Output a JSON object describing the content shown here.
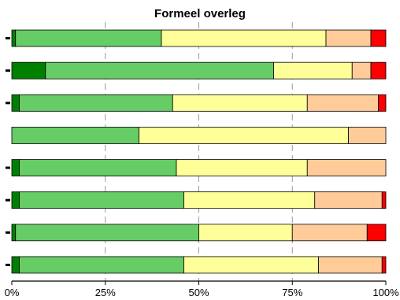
{
  "chart_data": {
    "type": "bar",
    "orientation": "horizontal",
    "stacked": true,
    "title": "Formeel overleg",
    "xlabel": "",
    "ylabel": "",
    "xlim": [
      0,
      100
    ],
    "x_ticks": [
      "0%",
      "25%",
      "50%",
      "75%",
      "100%"
    ],
    "x_tick_values": [
      0,
      25,
      50,
      75,
      100
    ],
    "grid": "vertical-dashed",
    "legend": "none",
    "categories": [
      "",
      "",
      "",
      "",
      "",
      "",
      "",
      ""
    ],
    "series": [
      {
        "color": "#008000",
        "values": [
          1,
          9,
          2,
          0,
          2,
          2,
          1,
          2
        ]
      },
      {
        "color": "#66cc66",
        "values": [
          39,
          61,
          41,
          34,
          42,
          44,
          49,
          44
        ]
      },
      {
        "color": "#ffff99",
        "values": [
          44,
          21,
          36,
          56,
          35,
          35,
          25,
          36
        ]
      },
      {
        "color": "#ffcc99",
        "values": [
          12,
          5,
          19,
          10,
          21,
          18,
          20,
          17
        ]
      },
      {
        "color": "#ff0000",
        "values": [
          4,
          4,
          2,
          0,
          0,
          1,
          5,
          1
        ]
      }
    ],
    "row_markers": [
      true,
      true,
      true,
      false,
      true,
      true,
      true,
      true
    ]
  }
}
